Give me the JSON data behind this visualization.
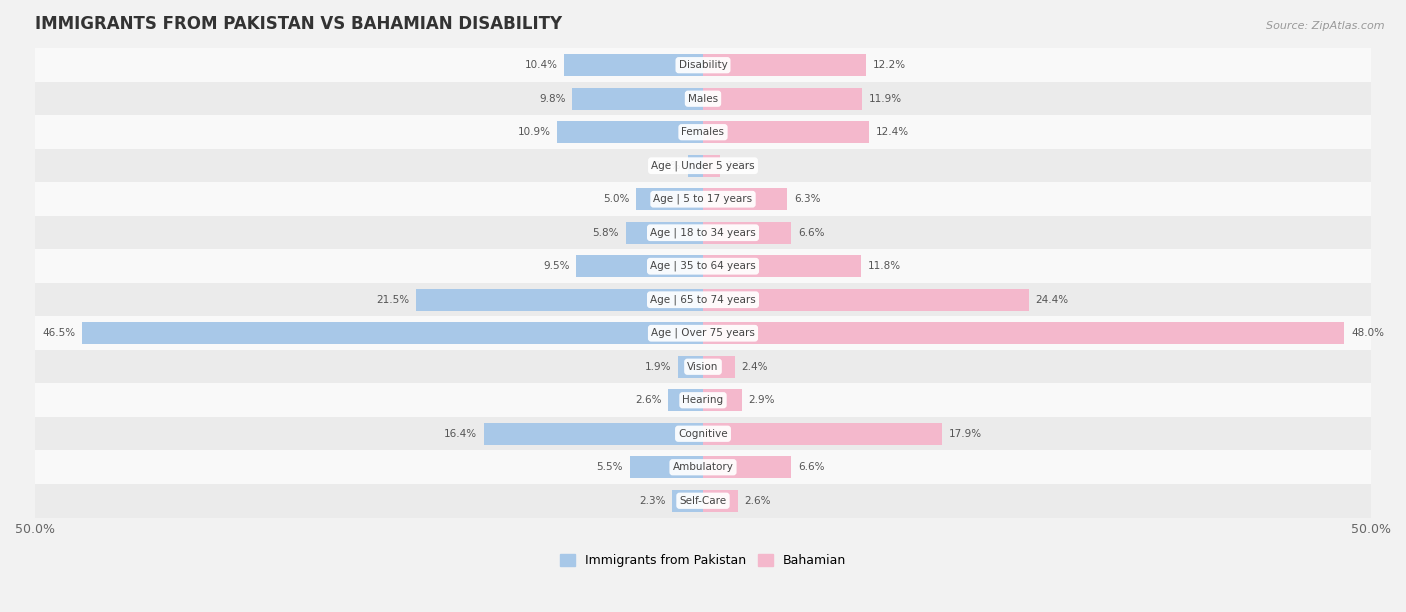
{
  "title": "IMMIGRANTS FROM PAKISTAN VS BAHAMIAN DISABILITY",
  "source": "Source: ZipAtlas.com",
  "categories": [
    "Disability",
    "Males",
    "Females",
    "Age | Under 5 years",
    "Age | 5 to 17 years",
    "Age | 18 to 34 years",
    "Age | 35 to 64 years",
    "Age | 65 to 74 years",
    "Age | Over 75 years",
    "Vision",
    "Hearing",
    "Cognitive",
    "Ambulatory",
    "Self-Care"
  ],
  "left_values": [
    10.4,
    9.8,
    10.9,
    1.1,
    5.0,
    5.8,
    9.5,
    21.5,
    46.5,
    1.9,
    2.6,
    16.4,
    5.5,
    2.3
  ],
  "right_values": [
    12.2,
    11.9,
    12.4,
    1.3,
    6.3,
    6.6,
    11.8,
    24.4,
    48.0,
    2.4,
    2.9,
    17.9,
    6.6,
    2.6
  ],
  "left_color": "#a8c8e8",
  "right_color": "#f4b8cc",
  "background_color": "#f2f2f2",
  "row_bg_even": "#f9f9f9",
  "row_bg_odd": "#ebebeb",
  "max_val": 50.0,
  "left_label": "Immigrants from Pakistan",
  "right_label": "Bahamian",
  "bar_height": 0.65
}
